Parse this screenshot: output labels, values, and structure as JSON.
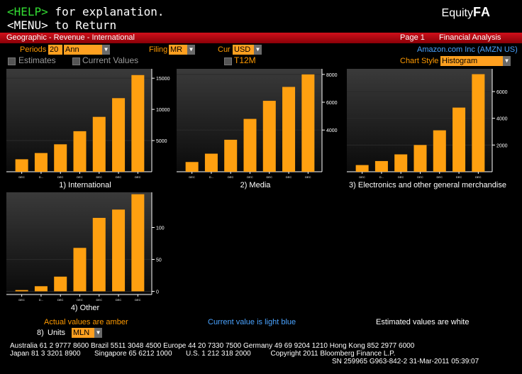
{
  "header": {
    "help_key": "<HELP>",
    "help_text": " for explanation.",
    "menu_key": "<MENU>",
    "menu_text": " to Return",
    "brand_prefix": "Equity",
    "brand_suffix": "FA"
  },
  "titlebar": {
    "title": "Geographic - Revenue - International",
    "page": "Page 1",
    "section": "Financial Analysis"
  },
  "controls": {
    "periods_label": "Periods",
    "periods_value": "20",
    "period_type": "Ann",
    "filing_label": "Filing",
    "filing_value": "MR",
    "cur_label": "Cur",
    "cur_value": "USD",
    "estimates_label": "Estimates",
    "current_values_label": "Current Values",
    "t12m_label": "T12M",
    "company": "Amazon.com Inc (AMZN US)",
    "chart_style_label": "Chart Style",
    "chart_style_value": "Histogram"
  },
  "chart_data": [
    {
      "type": "bar",
      "title": "1) International",
      "categories": [
        "DEC",
        "D...",
        "DEC",
        "DEC",
        "DEC",
        "DEC",
        "DEC"
      ],
      "values": [
        2000,
        3000,
        4400,
        6500,
        8800,
        11800,
        15500
      ],
      "yticks": [
        5000,
        10000,
        15000
      ],
      "ylim": [
        0,
        16500
      ]
    },
    {
      "type": "bar",
      "title": "2) Media",
      "categories": [
        "DEC",
        "D...",
        "DEC",
        "DEC",
        "DEC",
        "DEC",
        "DEC"
      ],
      "values": [
        1700,
        2300,
        3300,
        4800,
        6100,
        7100,
        8000
      ],
      "yticks": [
        4000,
        6000,
        8000
      ],
      "ylim": [
        1000,
        8400
      ]
    },
    {
      "type": "bar",
      "title": "3) Electronics and other general merchandise",
      "categories": [
        "DEC",
        "D...",
        "DEC",
        "DEC",
        "DEC",
        "DEC",
        "DEC"
      ],
      "values": [
        500,
        800,
        1300,
        2000,
        3100,
        4800,
        7300
      ],
      "yticks": [
        2000,
        4000,
        6000
      ],
      "ylim": [
        0,
        7700
      ]
    },
    {
      "type": "bar",
      "title": "4) Other",
      "categories": [
        "DEC",
        "D...",
        "DEC",
        "DEC",
        "DEC",
        "DEC",
        "DEC"
      ],
      "values": [
        2,
        8,
        23,
        68,
        115,
        128,
        152
      ],
      "yticks": [
        0,
        50,
        100
      ],
      "ylim": [
        -5,
        155
      ]
    }
  ],
  "legend": {
    "actual": "Actual values are amber",
    "current": "Current value is light blue",
    "estimated": "Estimated values are white"
  },
  "units": {
    "label": "Units",
    "value": "MLN"
  },
  "footer": {
    "line1": "Australia 61 2 9777 8600 Brazil 5511 3048 4500 Europe 44 20 7330 7500 Germany 49 69 9204 1210 Hong Kong 852 2977 6000",
    "line2": "Japan 81 3 3201 8900       Singapore 65 6212 1000       U.S. 1 212 318 2000          Copyright 2011 Bloomberg Finance L.P.",
    "line3": "SN 259965 G963-842-2 31-Mar-2011 05:39:07"
  },
  "colors": {
    "bar": "#ffa010",
    "accent": "#ff9a00",
    "title_bar": "#c0101a"
  }
}
